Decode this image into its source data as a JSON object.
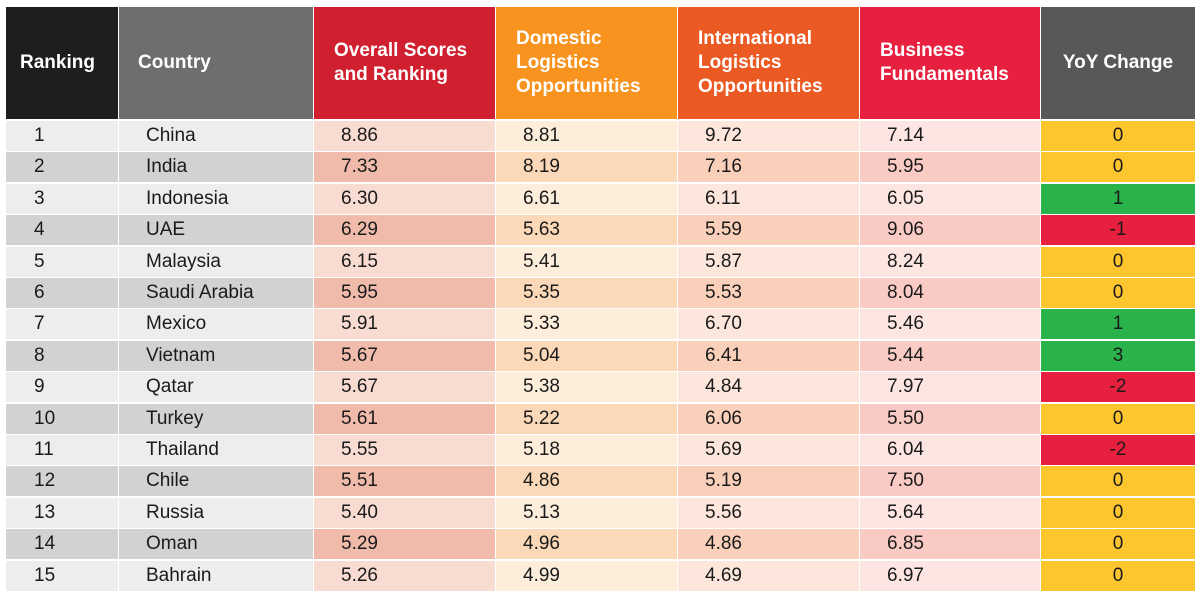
{
  "chart_data": {
    "type": "table",
    "columns": [
      {
        "key": "rank",
        "label": "Ranking",
        "header_bg": "#1f1d1e"
      },
      {
        "key": "country",
        "label": "Country",
        "header_bg": "#6e6e70"
      },
      {
        "key": "overall",
        "label": "Overall Scores and Ranking",
        "header_bg": "#d0202f"
      },
      {
        "key": "domestic",
        "label": "Domestic Logistics Opportunities",
        "header_bg": "#f7931e"
      },
      {
        "key": "international",
        "label": "International Logistics Opportunities",
        "header_bg": "#ec5a24"
      },
      {
        "key": "business",
        "label": "Business Fundamentals",
        "header_bg": "#e8203f"
      },
      {
        "key": "yoy",
        "label": "YoY Change",
        "header_bg": "#58585a"
      }
    ],
    "rows": [
      {
        "rank": "1",
        "country": "China",
        "overall": "8.86",
        "domestic": "8.81",
        "international": "9.72",
        "business": "7.14",
        "yoy": "0"
      },
      {
        "rank": "2",
        "country": "India",
        "overall": "7.33",
        "domestic": "8.19",
        "international": "7.16",
        "business": "5.95",
        "yoy": "0"
      },
      {
        "rank": "3",
        "country": "Indonesia",
        "overall": "6.30",
        "domestic": "6.61",
        "international": "6.11",
        "business": "6.05",
        "yoy": "1"
      },
      {
        "rank": "4",
        "country": "UAE",
        "overall": "6.29",
        "domestic": "5.63",
        "international": "5.59",
        "business": "9.06",
        "yoy": "-1"
      },
      {
        "rank": "5",
        "country": "Malaysia",
        "overall": "6.15",
        "domestic": "5.41",
        "international": "5.87",
        "business": "8.24",
        "yoy": "0"
      },
      {
        "rank": "6",
        "country": "Saudi Arabia",
        "overall": "5.95",
        "domestic": "5.35",
        "international": "5.53",
        "business": "8.04",
        "yoy": "0"
      },
      {
        "rank": "7",
        "country": "Mexico",
        "overall": "5.91",
        "domestic": "5.33",
        "international": "6.70",
        "business": "5.46",
        "yoy": "1"
      },
      {
        "rank": "8",
        "country": "Vietnam",
        "overall": "5.67",
        "domestic": "5.04",
        "international": "6.41",
        "business": "5.44",
        "yoy": "3"
      },
      {
        "rank": "9",
        "country": "Qatar",
        "overall": "5.67",
        "domestic": "5.38",
        "international": "4.84",
        "business": "7.97",
        "yoy": "-2"
      },
      {
        "rank": "10",
        "country": "Turkey",
        "overall": "5.61",
        "domestic": "5.22",
        "international": "6.06",
        "business": "5.50",
        "yoy": "0"
      },
      {
        "rank": "11",
        "country": "Thailand",
        "overall": "5.55",
        "domestic": "5.18",
        "international": "5.69",
        "business": "6.04",
        "yoy": "-2"
      },
      {
        "rank": "12",
        "country": "Chile",
        "overall": "5.51",
        "domestic": "4.86",
        "international": "5.19",
        "business": "7.50",
        "yoy": "0"
      },
      {
        "rank": "13",
        "country": "Russia",
        "overall": "5.40",
        "domestic": "5.13",
        "international": "5.56",
        "business": "5.64",
        "yoy": "0"
      },
      {
        "rank": "14",
        "country": "Oman",
        "overall": "5.29",
        "domestic": "4.96",
        "international": "4.86",
        "business": "6.85",
        "yoy": "0"
      },
      {
        "rank": "15",
        "country": "Bahrain",
        "overall": "5.26",
        "domestic": "4.99",
        "international": "4.69",
        "business": "6.97",
        "yoy": "0"
      }
    ],
    "row_colors": {
      "rank": [
        "#ededee",
        "#d2d2d3"
      ],
      "country": [
        "#ededee",
        "#d2d2d3"
      ],
      "overall": [
        "#f8dcd2",
        "#f0bbaa"
      ],
      "domestic": [
        "#fdeedc",
        "#fbd8b7"
      ],
      "international": [
        "#fde7dc",
        "#fbd0bb"
      ],
      "business": [
        "#fde5e2",
        "#facbc5"
      ]
    },
    "yoy_colors": {
      "positive": "#2bb34b",
      "negative": "#e8203f",
      "zero": "#fdc52e"
    }
  }
}
